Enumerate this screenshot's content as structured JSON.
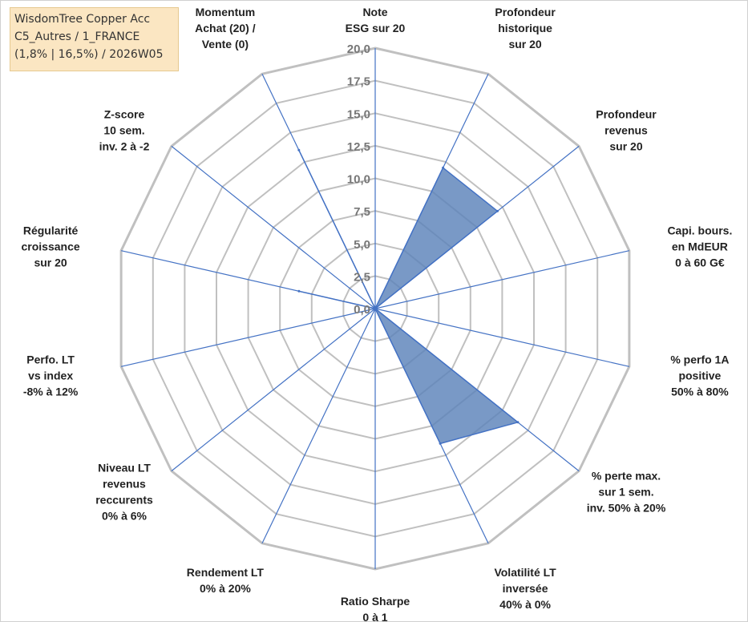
{
  "title_box": {
    "line1": "WisdomTree Copper Acc",
    "line2": "C5_Autres / 1_FRANCE",
    "line3": "(1,8% | 16,5%) / 2026W05"
  },
  "colors": {
    "grid": "#c0c0c0",
    "spoke": "#4472c4",
    "fill": "#5b82b9",
    "title_bg": "#fbe6c2"
  },
  "chart_data": {
    "type": "radar",
    "scale": {
      "min": 0,
      "max": 20,
      "step": 2.5
    },
    "tick_labels": [
      "0,0",
      "2,5",
      "5,0",
      "7,5",
      "10,0",
      "12,5",
      "15,0",
      "17,5",
      "20,0"
    ],
    "axes": [
      {
        "lines": [
          "Note",
          "ESG sur 20"
        ],
        "value": 0
      },
      {
        "lines": [
          "Profondeur",
          "historique",
          "sur 20"
        ],
        "value": 12.0
      },
      {
        "lines": [
          "Profondeur",
          "revenus",
          "sur 20"
        ],
        "value": 12.0
      },
      {
        "lines": [
          "Capi. bours.",
          "en MdEUR",
          "0 à 60 G€"
        ],
        "value": 0
      },
      {
        "lines": [
          "% perfo 1A",
          "positive",
          "50% à 80%"
        ],
        "value": 0
      },
      {
        "lines": [
          "% perte max.",
          "sur 1 sem.",
          "inv. 50% à 20%"
        ],
        "value": 14.0
      },
      {
        "lines": [
          "Volatilité LT",
          "inversée",
          "40% à 0%"
        ],
        "value": 11.5
      },
      {
        "lines": [
          "Ratio Sharpe",
          "0 à 1"
        ],
        "value": 0
      },
      {
        "lines": [
          "Rendement LT",
          "0% à 20%"
        ],
        "value": 0
      },
      {
        "lines": [
          "Niveau LT",
          "revenus",
          "reccurents",
          "0% à 6%"
        ],
        "value": 0
      },
      {
        "lines": [
          "Perfo. LT",
          "vs index",
          "-8% à 12%"
        ],
        "value": 0
      },
      {
        "lines": [
          "Régularité",
          "croissance",
          "sur 20"
        ],
        "value": 6.0
      },
      {
        "lines": [
          "Z-score",
          "10 sem.",
          "inv. 2 à -2"
        ],
        "value": 0
      },
      {
        "lines": [
          "Momentum",
          "Achat (20) /",
          "Vente (0)"
        ],
        "value": 13.5
      }
    ]
  }
}
